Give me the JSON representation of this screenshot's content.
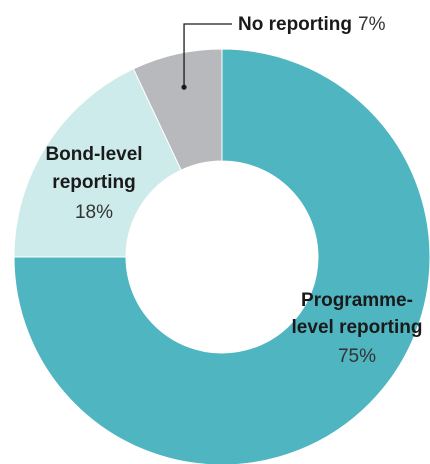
{
  "chart_data": {
    "type": "pie",
    "variant": "donut",
    "title": "",
    "slices": [
      {
        "label_lines": [
          "Programme-",
          "level reporting"
        ],
        "value": 75,
        "value_label": "75%",
        "color": "#4fb5c0"
      },
      {
        "label_lines": [
          "Bond-level",
          "reporting"
        ],
        "value": 18,
        "value_label": "18%",
        "color": "#cdebea"
      },
      {
        "label_lines": [
          "No reporting"
        ],
        "value": 7,
        "value_label": "7%",
        "color": "#b8b9bd"
      }
    ],
    "start": "12 o'clock",
    "direction": "clockwise"
  },
  "colors": {
    "background": "#ffffff",
    "leader_line": "#1a1a1a",
    "text": "#1a1a1a"
  }
}
